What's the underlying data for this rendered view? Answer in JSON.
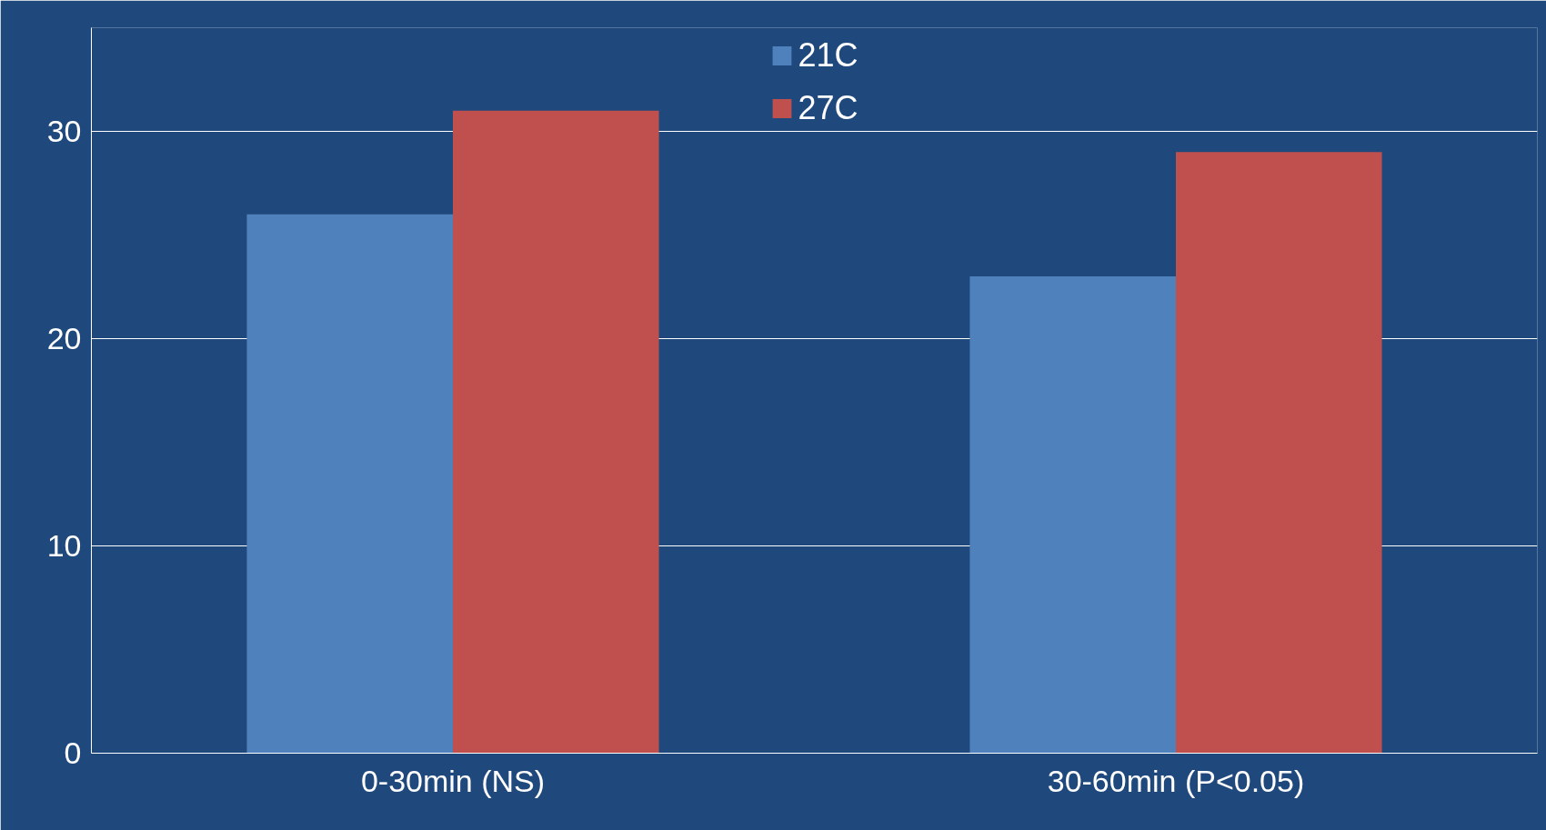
{
  "chart_data": {
    "type": "bar",
    "categories": [
      "0-30min (NS)",
      "30-60min (P<0.05)"
    ],
    "series": [
      {
        "name": "21C",
        "color": "#4f81bd",
        "values": [
          26,
          23
        ]
      },
      {
        "name": "27C",
        "color": "#c0504d",
        "values": [
          31,
          29
        ]
      }
    ],
    "ylim": [
      0,
      35
    ],
    "yticks": [
      0,
      10,
      20,
      30
    ],
    "grid": "y",
    "legend": "top"
  }
}
